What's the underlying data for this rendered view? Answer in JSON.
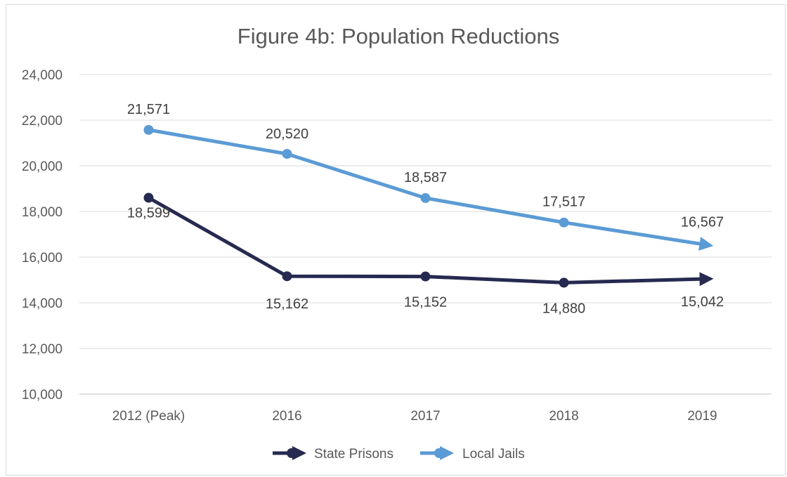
{
  "chart_data": {
    "type": "line",
    "title": "Figure 4b: Population Reductions",
    "categories": [
      "2012 (Peak)",
      "2016",
      "2017",
      "2018",
      "2019"
    ],
    "ylim": [
      10000,
      24000
    ],
    "yticks": [
      "10,000",
      "12,000",
      "14,000",
      "16,000",
      "18,000",
      "20,000",
      "22,000",
      "24,000"
    ],
    "grid": true,
    "legend_position": "bottom",
    "series": [
      {
        "name": "State Prisons",
        "color": "#262a50",
        "values": [
          18599,
          15162,
          15152,
          14880,
          15042
        ],
        "labels": [
          "18,599",
          "15,162",
          "15,152",
          "14,880",
          "15,042"
        ]
      },
      {
        "name": "Local Jails",
        "color": "#5b9bd5",
        "values": [
          21571,
          20520,
          18587,
          17517,
          16567
        ],
        "labels": [
          "21,571",
          "20,520",
          "18,587",
          "17,517",
          "16,567"
        ]
      }
    ]
  }
}
